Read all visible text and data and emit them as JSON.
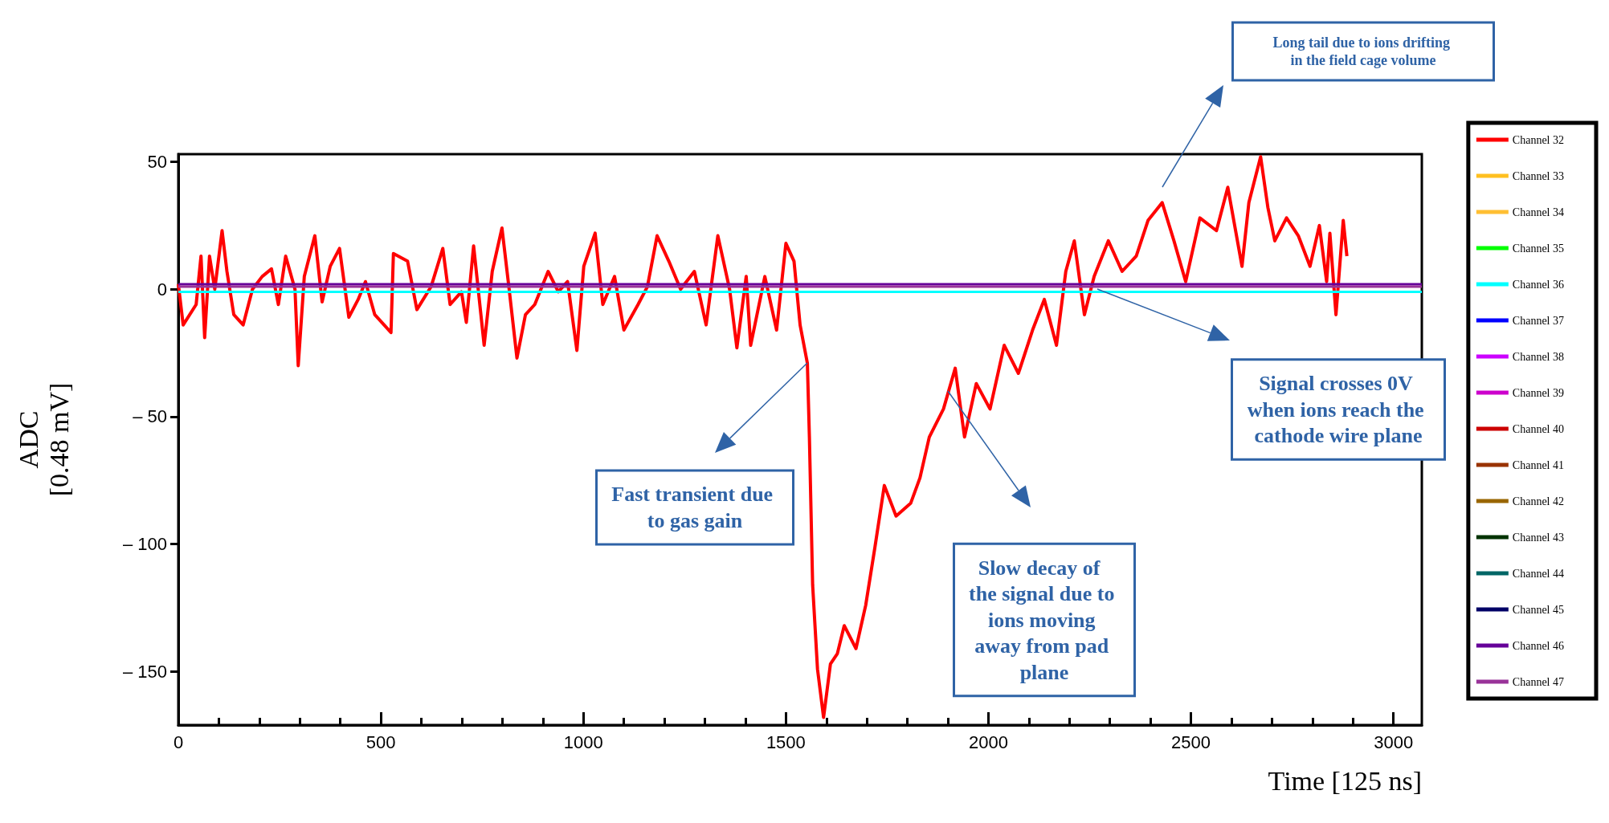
{
  "chart_data": {
    "type": "line",
    "xlabel": "Time [125 ns]",
    "ylabel": "ADC\n[0.48 mV]",
    "xlim": [
      0,
      3070
    ],
    "xticks": [
      0,
      500,
      1000,
      1500,
      2000,
      2500,
      3000
    ],
    "ylim": [
      -171,
      53
    ],
    "yticks": [
      50,
      0,
      {
        "value": -50,
        "label": "– 50"
      },
      {
        "value": -100,
        "label": "– 100"
      },
      {
        "value": -150,
        "label": "– 150"
      }
    ],
    "grid": false,
    "legend": "right",
    "series": [
      {
        "name": "Channel 32",
        "color": "#ff0000",
        "x": [
          0,
          12,
          44,
          56,
          65,
          77,
          90,
          108,
          120,
          137,
          160,
          183,
          207,
          230,
          247,
          265,
          288,
          296,
          311,
          337,
          355,
          375,
          398,
          421,
          444,
          462,
          485,
          525,
          531,
          566,
          589,
          624,
          653,
          671,
          699,
          711,
          729,
          755,
          775,
          799,
          816,
          836,
          857,
          880,
          913,
          938,
          961,
          984,
          1001,
          1029,
          1048,
          1077,
          1100,
          1135,
          1158,
          1182,
          1211,
          1240,
          1274,
          1303,
          1332,
          1361,
          1379,
          1402,
          1413,
          1448,
          1477,
          1500,
          1520,
          1535,
          1553,
          1558,
          1566,
          1578,
          1593,
          1610,
          1627,
          1644,
          1673,
          1697,
          1720,
          1743,
          1772,
          1808,
          1831,
          1854,
          1889,
          1918,
          1941,
          1970,
          2004,
          2039,
          2074,
          2109,
          2138,
          2168,
          2191,
          2212,
          2237,
          2261,
          2296,
          2330,
          2365,
          2394,
          2429,
          2458,
          2487,
          2522,
          2563,
          2591,
          2626,
          2643,
          2672,
          2690,
          2707,
          2736,
          2765,
          2794,
          2817,
          2835,
          2843,
          2858,
          2876,
          2885
        ],
        "values": [
          2,
          -14,
          -6,
          13,
          -19,
          13,
          0,
          23,
          7,
          -10,
          -14,
          0,
          5,
          8,
          -6,
          13,
          0,
          -30,
          5,
          21,
          -5,
          9,
          16,
          -11,
          -4,
          3,
          -10,
          -17,
          14,
          11,
          -8,
          1,
          16,
          -6,
          -1,
          -13,
          17,
          -22,
          7,
          24,
          1,
          -27,
          -10,
          -6,
          7,
          -1,
          3,
          -24,
          9,
          22,
          -6,
          5,
          -16,
          -6,
          1,
          21,
          11,
          0,
          7,
          -14,
          21,
          0,
          -23,
          5,
          -22,
          5,
          -16,
          18,
          11,
          -14,
          -29,
          -58,
          -116,
          -149,
          -168,
          -147,
          -143,
          -132,
          -141,
          -124,
          -101,
          -77,
          -89,
          -84,
          -74,
          -58,
          -47,
          -31,
          -58,
          -37,
          -47,
          -22,
          -33,
          -16,
          -4,
          -22,
          7,
          19,
          -10,
          5,
          19,
          7,
          13,
          27,
          34,
          19,
          3,
          28,
          23,
          40,
          9,
          34,
          52,
          32,
          19,
          28,
          21,
          9,
          25,
          3,
          22,
          -10,
          27,
          13
        ]
      },
      {
        "name": "Channel 33",
        "color": "#ffc020"
      },
      {
        "name": "Channel 34",
        "color": "#ffbf33"
      },
      {
        "name": "Channel 35",
        "color": "#00ff00"
      },
      {
        "name": "Channel 36",
        "color": "#00ffff",
        "x": [
          0,
          3070
        ],
        "values": [
          -1,
          -1
        ]
      },
      {
        "name": "Channel 37",
        "color": "#0000ff"
      },
      {
        "name": "Channel 38",
        "color": "#cc00ff"
      },
      {
        "name": "Channel 39",
        "color": "#cc00cc"
      },
      {
        "name": "Channel 40",
        "color": "#cc0000"
      },
      {
        "name": "Channel 41",
        "color": "#993300"
      },
      {
        "name": "Channel 42",
        "color": "#996600"
      },
      {
        "name": "Channel 43",
        "color": "#003300"
      },
      {
        "name": "Channel 44",
        "color": "#006666"
      },
      {
        "name": "Channel 45",
        "color": "#000066"
      },
      {
        "name": "Channel 46",
        "color": "#660099",
        "x": [
          0,
          3070
        ],
        "values": [
          2,
          2
        ]
      },
      {
        "name": "Channel 47",
        "color": "#993399",
        "x": [
          0,
          3070
        ],
        "values": [
          1,
          1
        ]
      }
    ],
    "annotations": [
      "Fast transient due to gas gain",
      "Slow decay of  the signal due to ions moving away from pad plane",
      "Signal crosses 0V when ions reach the cathode wire plane",
      "Long tail due to ions drifting in the field cage volume"
    ]
  }
}
